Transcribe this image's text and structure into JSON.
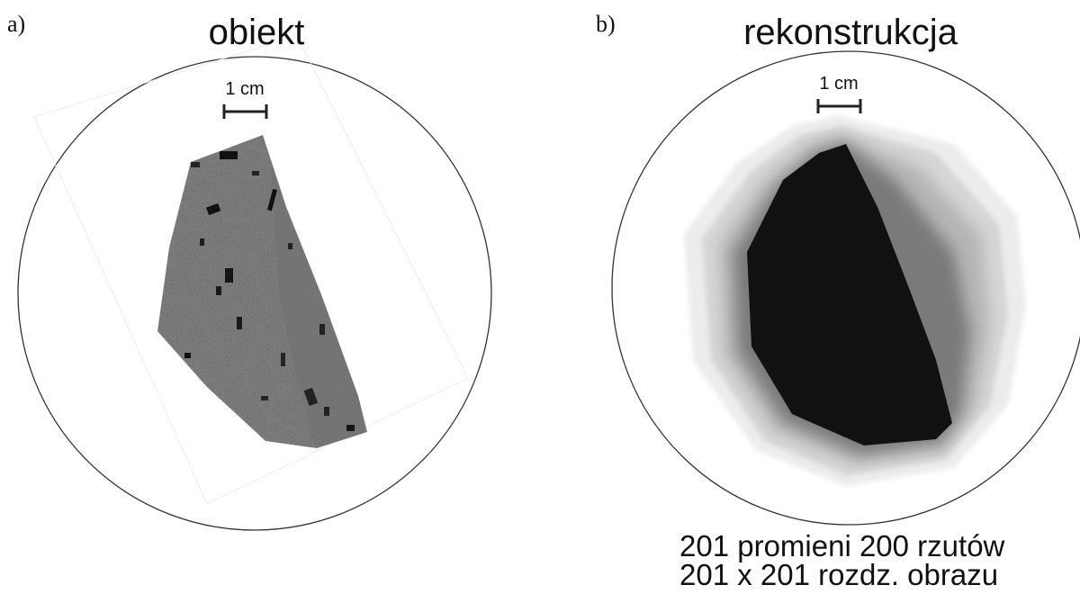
{
  "panel_a": {
    "letter": "a)",
    "title": "obiekt",
    "scale_label": "1 cm"
  },
  "panel_b": {
    "letter": "b)",
    "title": "rekonstrukcja",
    "scale_label": "1 cm",
    "caption_line1": "201 promieni  200 rzutów",
    "caption_line2": "201 x 201 rozdz. obrazu"
  }
}
